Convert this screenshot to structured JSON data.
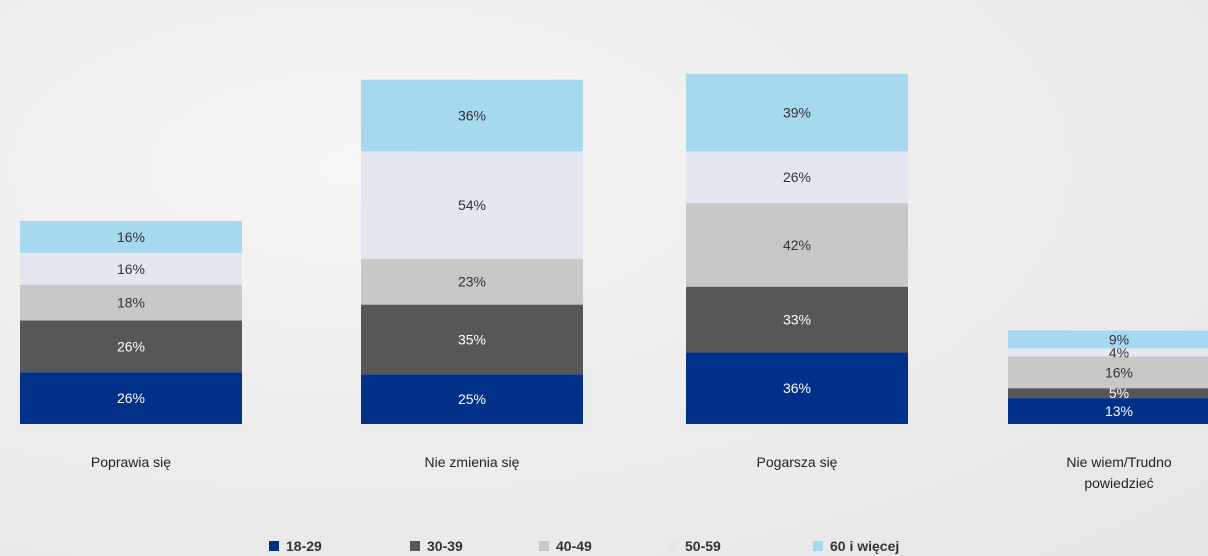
{
  "chart_data": {
    "type": "bar",
    "stacked": true,
    "categories": [
      [
        "Poprawia się"
      ],
      [
        "Nie zmienia się"
      ],
      [
        "Pogarsza się"
      ],
      [
        "Nie wiem/Trudno",
        "powiedzieć"
      ]
    ],
    "series": [
      {
        "name": "18-29",
        "color": "#003087",
        "label_color": "#ffffff",
        "values": [
          26,
          25,
          36,
          13
        ]
      },
      {
        "name": "30-39",
        "color": "#575756",
        "label_color": "#ffffff",
        "values": [
          26,
          35,
          33,
          5
        ]
      },
      {
        "name": "40-49",
        "color": "#c8c8c8",
        "label_color": "#333333",
        "values": [
          18,
          23,
          42,
          16
        ]
      },
      {
        "name": "50-59",
        "color": "#e4e7f0",
        "label_color": "#333333",
        "values": [
          16,
          54,
          26,
          4
        ]
      },
      {
        "name": "60 i więcej",
        "color": "#a6d8f0",
        "label_color": "#333333",
        "values": [
          16,
          36,
          39,
          9
        ]
      }
    ],
    "value_suffix": "%",
    "legend_position": "bottom",
    "grid": false
  }
}
